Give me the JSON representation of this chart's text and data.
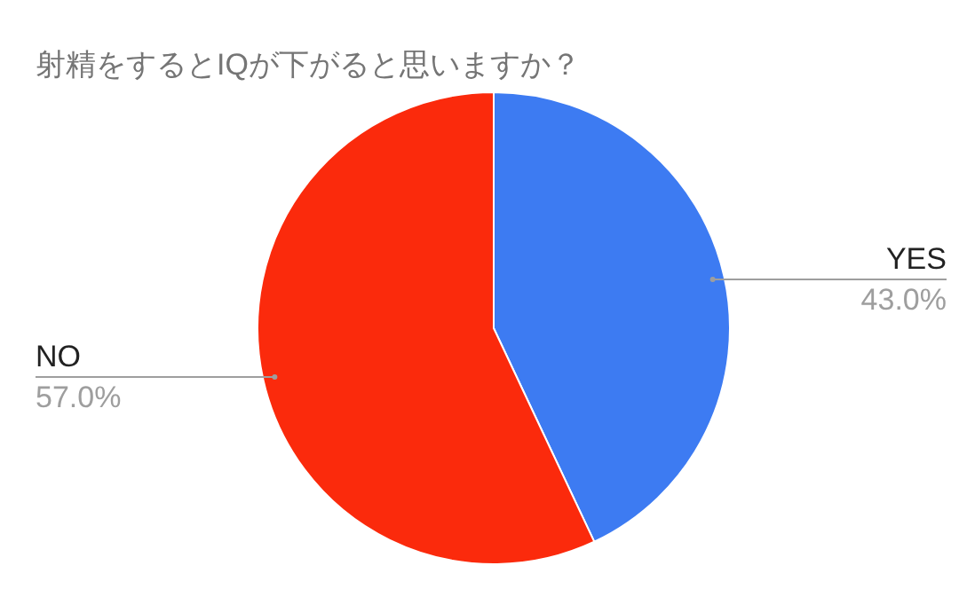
{
  "chart_data": {
    "type": "pie",
    "title": "射精をするとIQが下がると思いますか？",
    "categories": [
      "YES",
      "NO"
    ],
    "values": [
      43,
      57
    ],
    "colors": [
      "#3d7bf2",
      "#fb2a0c"
    ],
    "value_labels": [
      "43.0%",
      "57.0%"
    ],
    "legend": false
  }
}
